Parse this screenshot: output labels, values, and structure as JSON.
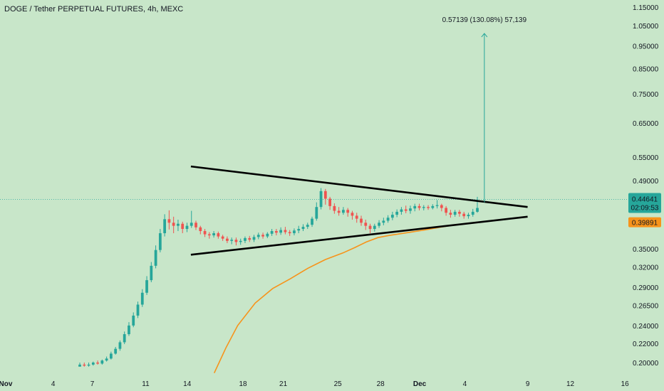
{
  "chart_data": {
    "type": "candlestick",
    "title": "DOGE / Tether PERPETUAL FUTURES, 4h, MEXC",
    "x_axis": {
      "tick_labels": [
        "Nov",
        "4",
        "7",
        "11",
        "14",
        "18",
        "21",
        "25",
        "28",
        "Dec",
        "4",
        "9",
        "12",
        "16"
      ]
    },
    "y_axis": {
      "scale": "log",
      "range": [
        0.19,
        1.17
      ],
      "tick_labels": [
        "1.15000",
        "1.05000",
        "0.95000",
        "0.85000",
        "0.75000",
        "0.65000",
        "0.55000",
        "0.49000",
        "0.35000",
        "0.32000",
        "0.29000",
        "0.26500",
        "0.24000",
        "0.22000",
        "0.20000"
      ],
      "tick_values": [
        1.15,
        1.05,
        0.95,
        0.85,
        0.75,
        0.65,
        0.55,
        0.49,
        0.35,
        0.32,
        0.29,
        0.265,
        0.24,
        0.22,
        0.2
      ]
    },
    "current_price": {
      "value": "0.44641",
      "countdown": "02:09:53",
      "level": 0.44641,
      "color": "#26a69a"
    },
    "moving_average": {
      "value_label": "0.39891",
      "level": 0.39891,
      "color": "#f7931a",
      "points": [
        [
          11.5,
          0.19
        ],
        [
          12.5,
          0.215
        ],
        [
          13.5,
          0.24
        ],
        [
          15,
          0.268
        ],
        [
          16.5,
          0.288
        ],
        [
          18,
          0.302
        ],
        [
          19.5,
          0.318
        ],
        [
          21,
          0.332
        ],
        [
          22.5,
          0.343
        ],
        [
          23.5,
          0.352
        ],
        [
          24.5,
          0.362
        ],
        [
          25.5,
          0.37
        ],
        [
          26.5,
          0.374
        ],
        [
          28,
          0.379
        ],
        [
          29.5,
          0.384
        ],
        [
          31,
          0.39
        ],
        [
          32.5,
          0.395
        ],
        [
          34,
          0.399
        ]
      ]
    },
    "triangle": {
      "color": "#000000",
      "upper_line": [
        [
          9.5,
          0.525
        ],
        [
          38.3,
          0.43
        ]
      ],
      "lower_line": [
        [
          9.5,
          0.34
        ],
        [
          38.3,
          0.41
        ]
      ]
    },
    "measurement": {
      "label": "0.57139 (130.08%) 57,139",
      "from": [
        34.6,
        0.44
      ],
      "to": [
        34.6,
        1.01
      ],
      "color": "#26a69a"
    },
    "candle_colors": {
      "up": "#26a69a",
      "down": "#ef5350"
    },
    "candles": [
      [
        0.196,
        0.198,
        0.197,
        0.2
      ],
      [
        0.198,
        0.197,
        0.196,
        0.2
      ],
      [
        0.197,
        0.198,
        0.196,
        0.2
      ],
      [
        0.198,
        0.2,
        0.197,
        0.201
      ],
      [
        0.2,
        0.199,
        0.198,
        0.202
      ],
      [
        0.199,
        0.202,
        0.198,
        0.203
      ],
      [
        0.202,
        0.204,
        0.201,
        0.206
      ],
      [
        0.204,
        0.209,
        0.203,
        0.211
      ],
      [
        0.209,
        0.214,
        0.208,
        0.216
      ],
      [
        0.214,
        0.221,
        0.212,
        0.223
      ],
      [
        0.221,
        0.23,
        0.219,
        0.233
      ],
      [
        0.23,
        0.24,
        0.228,
        0.244
      ],
      [
        0.24,
        0.252,
        0.238,
        0.256
      ],
      [
        0.252,
        0.266,
        0.249,
        0.27
      ],
      [
        0.266,
        0.282,
        0.263,
        0.287
      ],
      [
        0.282,
        0.3,
        0.279,
        0.306
      ],
      [
        0.3,
        0.322,
        0.297,
        0.328
      ],
      [
        0.322,
        0.348,
        0.318,
        0.356
      ],
      [
        0.348,
        0.378,
        0.344,
        0.386
      ],
      [
        0.378,
        0.405,
        0.372,
        0.415
      ],
      [
        0.405,
        0.398,
        0.385,
        0.423
      ],
      [
        0.398,
        0.392,
        0.378,
        0.41
      ],
      [
        0.392,
        0.396,
        0.382,
        0.404
      ],
      [
        0.396,
        0.386,
        0.378,
        0.4
      ],
      [
        0.386,
        0.392,
        0.38,
        0.398
      ],
      [
        0.392,
        0.398,
        0.388,
        0.422
      ],
      [
        0.398,
        0.389,
        0.384,
        0.402
      ],
      [
        0.389,
        0.382,
        0.376,
        0.392
      ],
      [
        0.382,
        0.376,
        0.371,
        0.386
      ],
      [
        0.376,
        0.374,
        0.368,
        0.38
      ],
      [
        0.374,
        0.378,
        0.37,
        0.382
      ],
      [
        0.378,
        0.372,
        0.368,
        0.381
      ],
      [
        0.372,
        0.368,
        0.364,
        0.375
      ],
      [
        0.368,
        0.364,
        0.36,
        0.372
      ],
      [
        0.364,
        0.366,
        0.358,
        0.37
      ],
      [
        0.366,
        0.362,
        0.356,
        0.37
      ],
      [
        0.362,
        0.364,
        0.357,
        0.368
      ],
      [
        0.364,
        0.369,
        0.36,
        0.372
      ],
      [
        0.369,
        0.366,
        0.362,
        0.373
      ],
      [
        0.366,
        0.371,
        0.362,
        0.375
      ],
      [
        0.371,
        0.375,
        0.367,
        0.379
      ],
      [
        0.375,
        0.372,
        0.368,
        0.379
      ],
      [
        0.372,
        0.377,
        0.369,
        0.38
      ],
      [
        0.377,
        0.382,
        0.373,
        0.386
      ],
      [
        0.382,
        0.379,
        0.374,
        0.386
      ],
      [
        0.379,
        0.384,
        0.375,
        0.389
      ],
      [
        0.384,
        0.38,
        0.376,
        0.39
      ],
      [
        0.38,
        0.378,
        0.373,
        0.384
      ],
      [
        0.378,
        0.383,
        0.374,
        0.387
      ],
      [
        0.383,
        0.386,
        0.378,
        0.392
      ],
      [
        0.386,
        0.39,
        0.382,
        0.395
      ],
      [
        0.39,
        0.394,
        0.386,
        0.398
      ],
      [
        0.394,
        0.406,
        0.39,
        0.41
      ],
      [
        0.406,
        0.43,
        0.402,
        0.44
      ],
      [
        0.43,
        0.465,
        0.425,
        0.472
      ],
      [
        0.465,
        0.448,
        0.435,
        0.47
      ],
      [
        0.448,
        0.432,
        0.424,
        0.452
      ],
      [
        0.432,
        0.422,
        0.416,
        0.438
      ],
      [
        0.422,
        0.418,
        0.412,
        0.43
      ],
      [
        0.418,
        0.424,
        0.414,
        0.43
      ],
      [
        0.424,
        0.418,
        0.41,
        0.428
      ],
      [
        0.418,
        0.412,
        0.404,
        0.422
      ],
      [
        0.412,
        0.406,
        0.398,
        0.418
      ],
      [
        0.406,
        0.398,
        0.392,
        0.412
      ],
      [
        0.398,
        0.392,
        0.384,
        0.404
      ],
      [
        0.392,
        0.386,
        0.378,
        0.396
      ],
      [
        0.386,
        0.392,
        0.381,
        0.396
      ],
      [
        0.392,
        0.398,
        0.388,
        0.403
      ],
      [
        0.398,
        0.402,
        0.393,
        0.408
      ],
      [
        0.402,
        0.408,
        0.398,
        0.413
      ],
      [
        0.408,
        0.414,
        0.403,
        0.42
      ],
      [
        0.414,
        0.42,
        0.409,
        0.425
      ],
      [
        0.42,
        0.425,
        0.414,
        0.43
      ],
      [
        0.425,
        0.422,
        0.417,
        0.433
      ],
      [
        0.422,
        0.427,
        0.416,
        0.433
      ],
      [
        0.427,
        0.432,
        0.421,
        0.437
      ],
      [
        0.432,
        0.428,
        0.423,
        0.437
      ],
      [
        0.428,
        0.43,
        0.423,
        0.434
      ],
      [
        0.43,
        0.428,
        0.424,
        0.434
      ],
      [
        0.428,
        0.432,
        0.425,
        0.436
      ],
      [
        0.432,
        0.434,
        0.427,
        0.445
      ],
      [
        0.434,
        0.428,
        0.421,
        0.437
      ],
      [
        0.428,
        0.418,
        0.412,
        0.432
      ],
      [
        0.418,
        0.414,
        0.408,
        0.424
      ],
      [
        0.414,
        0.42,
        0.41,
        0.424
      ],
      [
        0.42,
        0.416,
        0.41,
        0.424
      ],
      [
        0.416,
        0.411,
        0.406,
        0.42
      ],
      [
        0.411,
        0.414,
        0.406,
        0.418
      ],
      [
        0.414,
        0.42,
        0.41,
        0.426
      ],
      [
        0.42,
        0.428,
        0.418,
        0.452
      ]
    ]
  }
}
